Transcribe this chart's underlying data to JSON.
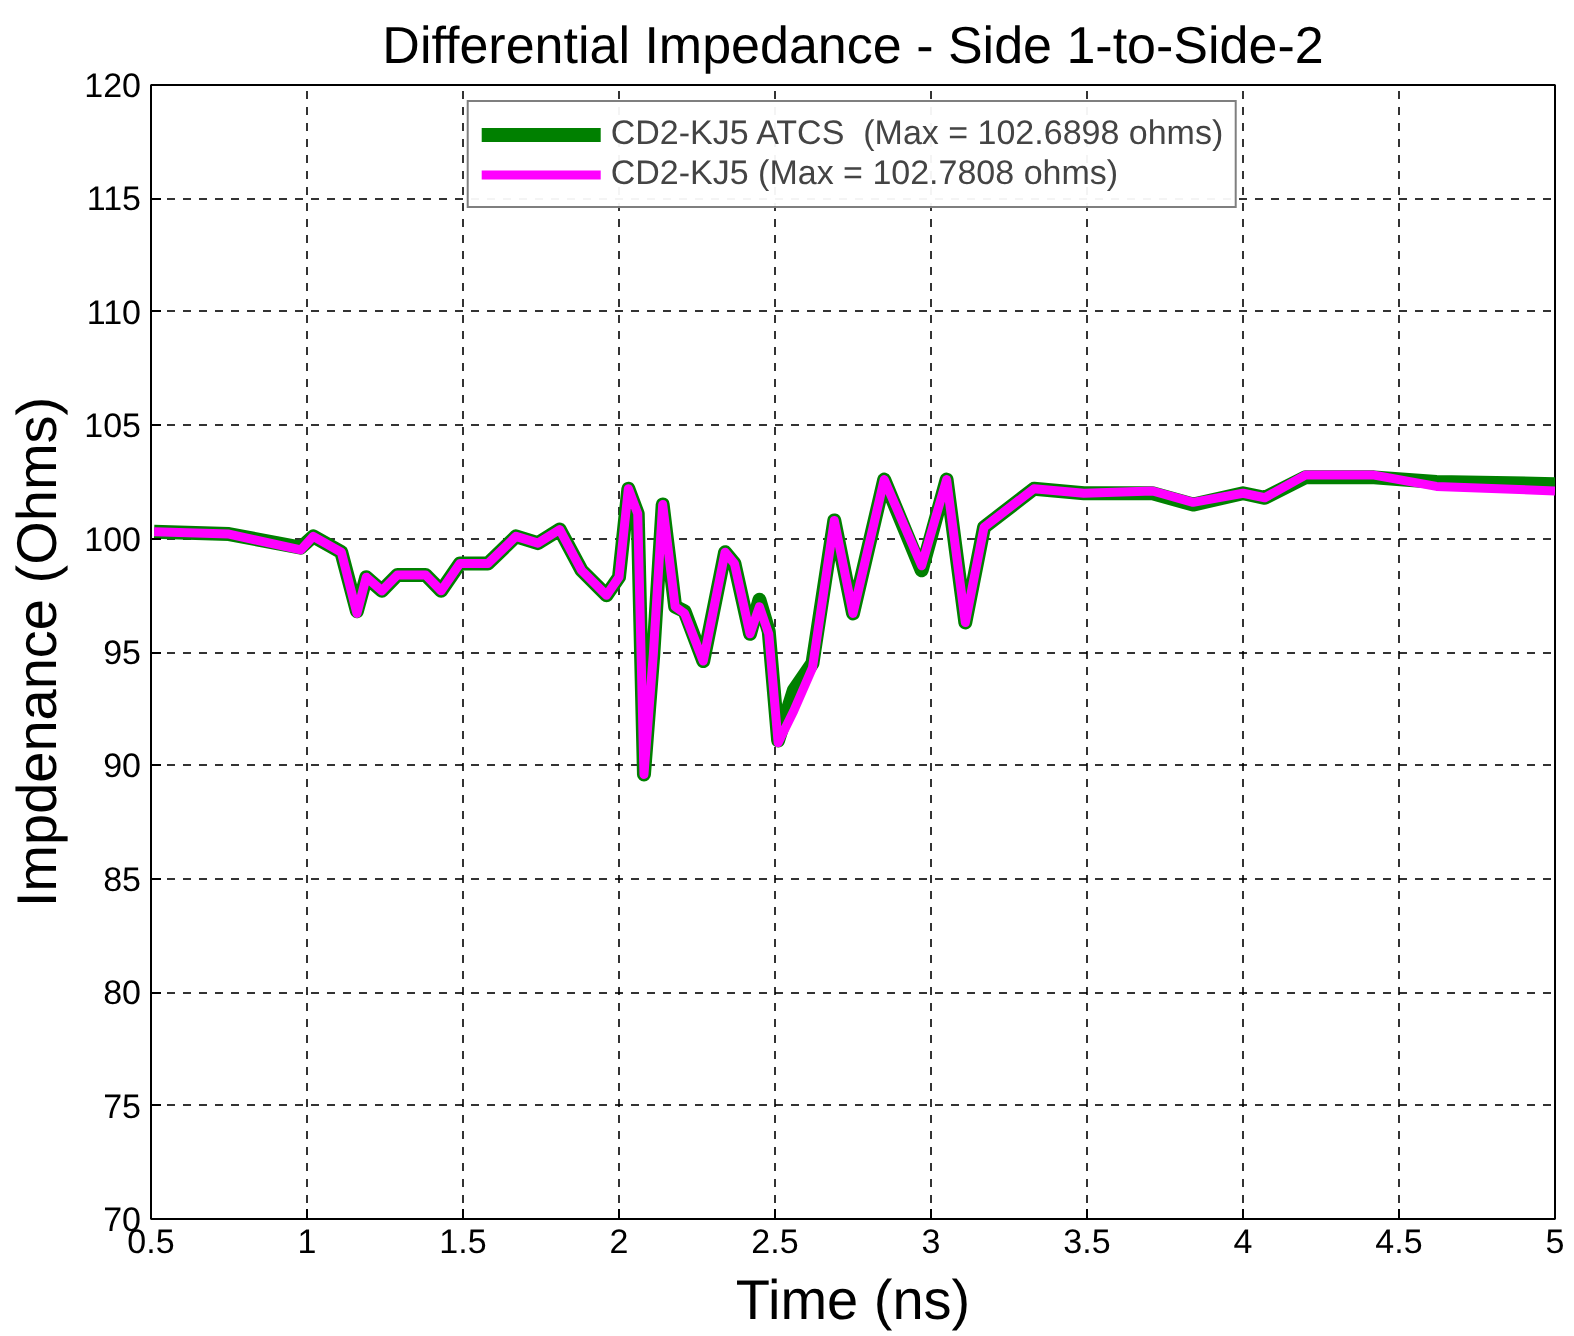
{
  "chart_data": {
    "type": "line",
    "title": "Differential Impedance - Side 1-to-Side-2",
    "xlabel": "Time (ns)",
    "ylabel": "Impdenance (Ohms)",
    "xlim": [
      0.5,
      5
    ],
    "ylim": [
      70,
      120
    ],
    "xticks": [
      0.5,
      1,
      1.5,
      2,
      2.5,
      3,
      3.5,
      4,
      4.5,
      5
    ],
    "yticks": [
      70,
      75,
      80,
      85,
      90,
      95,
      100,
      105,
      110,
      115,
      120
    ],
    "grid": true,
    "legend": "top",
    "line_style": "solid",
    "marker": "none",
    "x": [
      0.51,
      0.75,
      0.98,
      1.02,
      1.11,
      1.16,
      1.19,
      1.24,
      1.29,
      1.38,
      1.43,
      1.49,
      1.58,
      1.67,
      1.74,
      1.81,
      1.88,
      1.96,
      2.0,
      2.03,
      2.06,
      2.08,
      2.11,
      2.14,
      2.18,
      2.21,
      2.27,
      2.34,
      2.37,
      2.42,
      2.45,
      2.48,
      2.51,
      2.56,
      2.62,
      2.69,
      2.75,
      2.85,
      2.97,
      3.05,
      3.11,
      3.17,
      3.33,
      3.49,
      3.71,
      3.84,
      4.0,
      4.07,
      4.2,
      4.42,
      4.62,
      5.0
    ],
    "series": [
      {
        "name": "CD2-KJ5 ATCS  (Max = 102.6898 ohms)",
        "color": "#008000",
        "values": [
          100.3,
          100.2,
          99.6,
          100.1,
          99.4,
          96.8,
          98.3,
          97.7,
          98.4,
          98.4,
          97.7,
          98.9,
          98.9,
          100.1,
          99.8,
          100.4,
          98.6,
          97.5,
          98.3,
          102.2,
          101.1,
          89.6,
          94.9,
          101.5,
          97.0,
          96.8,
          94.6,
          99.4,
          98.9,
          95.8,
          97.3,
          95.9,
          91.1,
          93.3,
          94.5,
          100.8,
          96.7,
          102.6,
          98.6,
          102.6,
          96.3,
          100.5,
          102.2,
          102.0,
          102.0,
          101.5,
          102.0,
          101.8,
          102.7,
          102.7,
          102.5,
          102.4
        ]
      },
      {
        "name": "CD2-KJ5 (Max = 102.7808 ohms)",
        "color": "#ff00ff",
        "values": [
          100.3,
          100.2,
          99.5,
          100.1,
          99.4,
          96.7,
          98.3,
          97.7,
          98.4,
          98.4,
          97.7,
          98.9,
          98.9,
          100.1,
          99.8,
          100.4,
          98.6,
          97.5,
          98.3,
          102.2,
          101.1,
          89.6,
          94.9,
          101.5,
          97.0,
          96.7,
          94.6,
          99.4,
          98.9,
          95.8,
          97.0,
          95.8,
          91.0,
          92.4,
          94.3,
          100.8,
          96.7,
          102.6,
          98.8,
          102.6,
          96.3,
          100.5,
          102.2,
          102.0,
          102.1,
          101.6,
          102.0,
          101.8,
          102.8,
          102.8,
          102.3,
          102.1
        ]
      }
    ]
  }
}
